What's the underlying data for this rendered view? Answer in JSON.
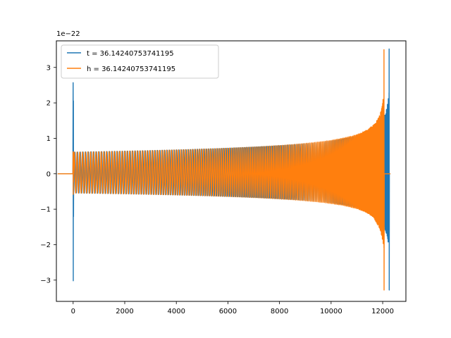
{
  "chart_data": {
    "type": "line",
    "title": "",
    "xlabel": "",
    "ylabel": "",
    "y_offset_label": "1e−22",
    "xlim": [
      -650,
      12900
    ],
    "ylim": [
      -3.6,
      3.75
    ],
    "grid": false,
    "legend_position": "top-left",
    "x_ticks": [
      {
        "value": 0,
        "label": "0"
      },
      {
        "value": 2000,
        "label": "2000"
      },
      {
        "value": 4000,
        "label": "4000"
      },
      {
        "value": 6000,
        "label": "6000"
      },
      {
        "value": 8000,
        "label": "8000"
      },
      {
        "value": 10000,
        "label": "10000"
      },
      {
        "value": 12000,
        "label": "12000"
      }
    ],
    "y_ticks": [
      {
        "value": -3,
        "label": "−3"
      },
      {
        "value": -2,
        "label": "−2"
      },
      {
        "value": -1,
        "label": "−1"
      },
      {
        "value": 0,
        "label": "0"
      },
      {
        "value": 1,
        "label": "1"
      },
      {
        "value": 2,
        "label": "2"
      },
      {
        "value": 3,
        "label": "3"
      }
    ],
    "series": [
      {
        "name": "t = 36.14240753741195",
        "color": "#1f77b4",
        "signal": {
          "start": 0,
          "end": 12250,
          "start_spike_max": 2.57,
          "start_spike_min": -3.02,
          "base_amplitude": 0.61,
          "final_max": 3.52,
          "final_min": -3.28,
          "oscillation_count": 185,
          "zero_tail_end": 12300
        }
      },
      {
        "name": "h = 36.14240753741195",
        "color": "#ff7f0e",
        "signal": {
          "start": 0,
          "end": 12050,
          "start_spike_max": 0.62,
          "start_spike_min": -0.58,
          "base_amplitude": 0.61,
          "final_max": 3.5,
          "final_min": -3.28,
          "oscillation_count": 182,
          "zero_tail_end": 12300
        }
      }
    ]
  }
}
